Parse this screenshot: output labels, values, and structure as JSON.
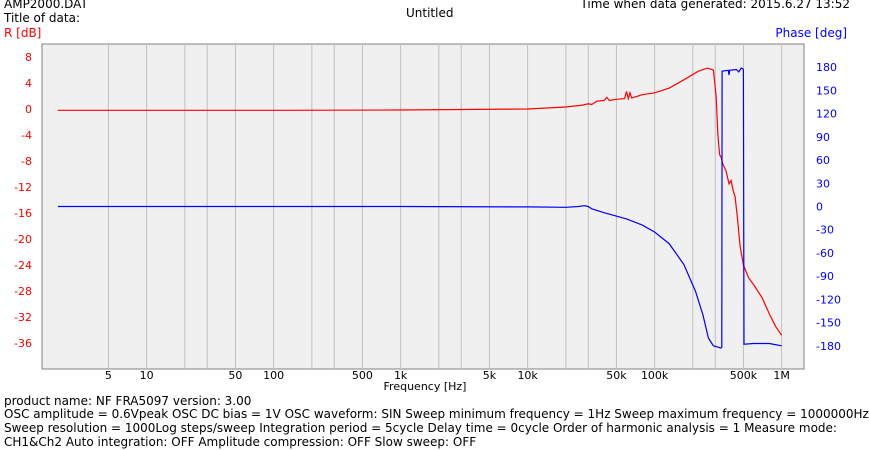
{
  "header": {
    "filename": "AMP2000.DAT",
    "title_label": "Title of data:",
    "title": "Untitled",
    "time_generated": "Time when data generated: 2015.6.27 13:52"
  },
  "footer": {
    "line1": "product name: NF FRA5097      version: 3.00",
    "line2": "OSC amplitude = 0.6Vpeak  OSC DC bias = 1V  OSC waveform: SIN  Sweep minimum frequency = 1Hz  Sweep maximum frequency = 1000000Hz",
    "line3": "Sweep resolution = 1000Log steps/sweep  Integration period = 5cycle  Delay time = 0cycle  Order of harmonic analysis = 1  Measure mode:",
    "line4": "CH1&Ch2  Auto integration: OFF  Amplitude compression: OFF  Slow sweep: OFF"
  },
  "colors": {
    "gain": "#ff0000",
    "phase": "#0000ff",
    "plot_bg": "#f0f0f0",
    "grid": "#c0c0c0"
  },
  "chart_data": {
    "type": "line",
    "title": "Untitled",
    "xlabel": "Frequency [Hz]",
    "ylabel_left": "R [dB]",
    "ylabel_right": "Phase [deg]",
    "x_scale": "log",
    "xlim": [
      1.5,
      1500000
    ],
    "ylim_left": [
      -40,
      10
    ],
    "ylim_right": [
      -210,
      210
    ],
    "grid": true,
    "x_ticks": [
      {
        "value": 5,
        "label": "5"
      },
      {
        "value": 10,
        "label": "10"
      },
      {
        "value": 50,
        "label": "50"
      },
      {
        "value": 100,
        "label": "100"
      },
      {
        "value": 500,
        "label": "500"
      },
      {
        "value": 1000,
        "label": "1k"
      },
      {
        "value": 5000,
        "label": "5k"
      },
      {
        "value": 10000,
        "label": "10k"
      },
      {
        "value": 50000,
        "label": "50k"
      },
      {
        "value": 100000,
        "label": "100k"
      },
      {
        "value": 500000,
        "label": "500k"
      },
      {
        "value": 1000000,
        "label": "1M"
      }
    ],
    "x_minor_gridlines": [
      20,
      30,
      200,
      300,
      2000,
      3000,
      20000,
      30000,
      200000,
      300000
    ],
    "y_ticks_left": [
      8,
      4,
      0,
      -4,
      -8,
      -12,
      -16,
      -20,
      -24,
      -28,
      -32,
      -36
    ],
    "y_ticks_right": [
      180,
      150,
      120,
      90,
      60,
      30,
      0,
      -30,
      -60,
      -90,
      -120,
      -150,
      -180
    ],
    "series": [
      {
        "axis": "left",
        "color": "#ff0000",
        "points": [
          [
            2,
            -0.2
          ],
          [
            100,
            -0.2
          ],
          [
            1000,
            -0.15
          ],
          [
            10000,
            0.0
          ],
          [
            20000,
            0.3
          ],
          [
            27000,
            0.6
          ],
          [
            30000,
            0.8
          ],
          [
            32000,
            0.7
          ],
          [
            35000,
            1.2
          ],
          [
            40000,
            1.3
          ],
          [
            42000,
            1.8
          ],
          [
            44000,
            1.3
          ],
          [
            50000,
            1.5
          ],
          [
            58000,
            1.6
          ],
          [
            60000,
            2.7
          ],
          [
            62000,
            1.6
          ],
          [
            64000,
            2.5
          ],
          [
            66000,
            1.7
          ],
          [
            80000,
            2.2
          ],
          [
            100000,
            2.5
          ],
          [
            130000,
            3.2
          ],
          [
            170000,
            4.5
          ],
          [
            220000,
            5.8
          ],
          [
            260000,
            6.3
          ],
          [
            290000,
            6.0
          ],
          [
            305000,
            2.0
          ],
          [
            315000,
            -4.0
          ],
          [
            325000,
            -7.0
          ],
          [
            335000,
            -7.5
          ],
          [
            345000,
            -8.5
          ],
          [
            355000,
            -9.0
          ],
          [
            365000,
            -9.5
          ],
          [
            375000,
            -10.5
          ],
          [
            385000,
            -11.5
          ],
          [
            400000,
            -11.0
          ],
          [
            415000,
            -12.5
          ],
          [
            430000,
            -13.5
          ],
          [
            450000,
            -17.0
          ],
          [
            470000,
            -21.0
          ],
          [
            500000,
            -24.0
          ],
          [
            550000,
            -26.0
          ],
          [
            600000,
            -27.0
          ],
          [
            700000,
            -29.0
          ],
          [
            800000,
            -31.5
          ],
          [
            900000,
            -33.5
          ],
          [
            1000000,
            -34.8
          ]
        ]
      },
      {
        "axis": "right",
        "color": "#0000ff",
        "points": [
          [
            2,
            0
          ],
          [
            100,
            0
          ],
          [
            1000,
            0
          ],
          [
            10000,
            -0.5
          ],
          [
            20000,
            -1
          ],
          [
            25000,
            0
          ],
          [
            28000,
            1
          ],
          [
            30000,
            0
          ],
          [
            32000,
            -3
          ],
          [
            40000,
            -8
          ],
          [
            60000,
            -16
          ],
          [
            80000,
            -24
          ],
          [
            100000,
            -33
          ],
          [
            130000,
            -48
          ],
          [
            170000,
            -75
          ],
          [
            210000,
            -110
          ],
          [
            240000,
            -140
          ],
          [
            265000,
            -170
          ],
          [
            290000,
            -180
          ],
          [
            320000,
            -182
          ],
          [
            330000,
            -183
          ],
          [
            338000,
            -182
          ],
          [
            340000,
            175
          ],
          [
            380000,
            176
          ],
          [
            385000,
            170
          ],
          [
            390000,
            176
          ],
          [
            440000,
            177
          ],
          [
            460000,
            174
          ],
          [
            480000,
            179
          ],
          [
            495000,
            178
          ],
          [
            500000,
            177
          ],
          [
            505000,
            -178
          ],
          [
            600000,
            -177
          ],
          [
            800000,
            -177
          ],
          [
            1000000,
            -180
          ]
        ]
      }
    ]
  }
}
